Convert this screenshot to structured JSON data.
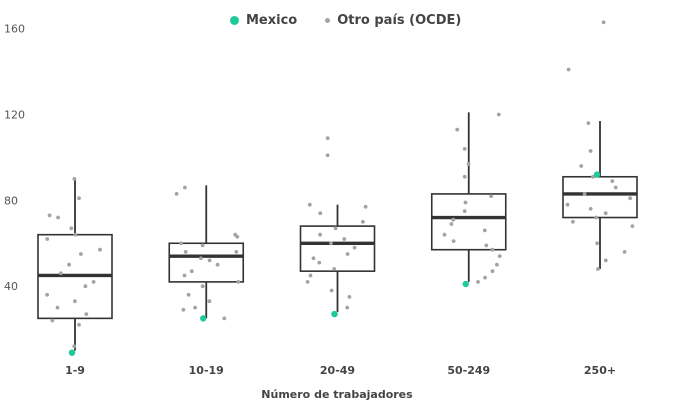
{
  "legend": {
    "mexico_label": "Mexico",
    "other_label": "Otro país (OCDE)"
  },
  "colors": {
    "mexico": "#1ec99a",
    "other": "#a3a3a3",
    "box": "#333333",
    "median": "#333333",
    "text": "#555555"
  },
  "chart_data": {
    "type": "boxplot",
    "xlabel": "Número de trabajadores",
    "ylabel": "",
    "ylim": [
      0,
      165
    ],
    "yticks": [
      40,
      80,
      120,
      160
    ],
    "grid": false,
    "legend_position": "top",
    "categories": [
      "1-9",
      "10-19",
      "20-49",
      "50-249",
      "250+"
    ],
    "boxes": [
      {
        "category": "1-9",
        "whisker_low": 10,
        "q1": 25,
        "median": 45,
        "q3": 64,
        "whisker_high": 90,
        "mexico": 9
      },
      {
        "category": "10-19",
        "whisker_low": 25,
        "q1": 42,
        "median": 54,
        "q3": 60,
        "whisker_high": 87,
        "mexico": 25
      },
      {
        "category": "20-49",
        "whisker_low": 28,
        "q1": 47,
        "median": 60,
        "q3": 68,
        "whisker_high": 78,
        "mexico": 27
      },
      {
        "category": "50-249",
        "whisker_low": 42,
        "q1": 57,
        "median": 72,
        "q3": 83,
        "whisker_high": 121,
        "mexico": 41
      },
      {
        "category": "250+",
        "whisker_low": 48,
        "q1": 72,
        "median": 83,
        "q3": 91,
        "whisker_high": 117,
        "mexico": 92
      }
    ],
    "others": [
      [
        90,
        81,
        73,
        72,
        67,
        64,
        62,
        57,
        55,
        50,
        46,
        42,
        40,
        36,
        33,
        30,
        27,
        24,
        22,
        12
      ],
      [
        86,
        83,
        64,
        63,
        60,
        59,
        56,
        56,
        53,
        52,
        50,
        47,
        45,
        42,
        40,
        36,
        33,
        30,
        29,
        25
      ],
      [
        109,
        101,
        78,
        77,
        74,
        70,
        67,
        64,
        62,
        60,
        58,
        55,
        53,
        51,
        48,
        45,
        42,
        38,
        35,
        30
      ],
      [
        120,
        113,
        104,
        97,
        91,
        82,
        79,
        75,
        71,
        69,
        66,
        64,
        61,
        59,
        57,
        54,
        50,
        47,
        44,
        42
      ],
      [
        163,
        141,
        116,
        103,
        96,
        91,
        89,
        86,
        83,
        81,
        78,
        76,
        74,
        72,
        70,
        68,
        60,
        56,
        52,
        48
      ]
    ]
  }
}
